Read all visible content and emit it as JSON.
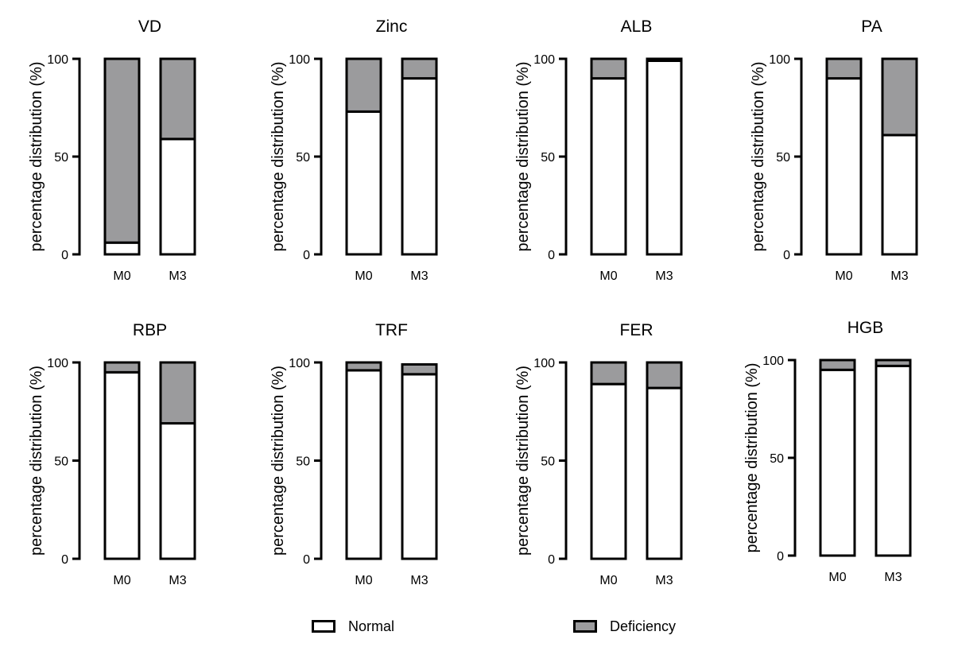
{
  "figure": {
    "colors": {
      "normal": "#ffffff",
      "deficiency": "#9b9b9d",
      "stroke": "#000000"
    },
    "legend": [
      {
        "key": "normal",
        "label": "Normal"
      },
      {
        "key": "deficiency",
        "label": "Deficiency"
      }
    ]
  },
  "chart_data": [
    {
      "type": "bar",
      "stacked": true,
      "title": "VD",
      "categories": [
        "M0",
        "M3"
      ],
      "series": [
        {
          "name": "Normal",
          "values": [
            6,
            59
          ]
        },
        {
          "name": "Deficiency",
          "values": [
            94,
            41
          ]
        }
      ],
      "xlabel": "",
      "ylabel": "percentage distribution (%)",
      "ylim": [
        0,
        100
      ],
      "yticks": [
        0,
        50,
        100
      ],
      "grid": false
    },
    {
      "type": "bar",
      "stacked": true,
      "title": "Zinc",
      "categories": [
        "M0",
        "M3"
      ],
      "series": [
        {
          "name": "Normal",
          "values": [
            73,
            90
          ]
        },
        {
          "name": "Deficiency",
          "values": [
            27,
            10
          ]
        }
      ],
      "xlabel": "",
      "ylabel": "percentage distribution (%)",
      "ylim": [
        0,
        100
      ],
      "yticks": [
        0,
        50,
        100
      ],
      "grid": false
    },
    {
      "type": "bar",
      "stacked": true,
      "title": "ALB",
      "categories": [
        "M0",
        "M3"
      ],
      "series": [
        {
          "name": "Normal",
          "values": [
            90,
            99
          ]
        },
        {
          "name": "Deficiency",
          "values": [
            10,
            1
          ]
        }
      ],
      "xlabel": "",
      "ylabel": "percentage distribution (%)",
      "ylim": [
        0,
        100
      ],
      "yticks": [
        0,
        50,
        100
      ],
      "grid": false
    },
    {
      "type": "bar",
      "stacked": true,
      "title": "PA",
      "categories": [
        "M0",
        "M3"
      ],
      "series": [
        {
          "name": "Normal",
          "values": [
            90,
            61
          ]
        },
        {
          "name": "Deficiency",
          "values": [
            10,
            39
          ]
        }
      ],
      "xlabel": "",
      "ylabel": "percentage distribution (%)",
      "ylim": [
        0,
        100
      ],
      "yticks": [
        0,
        50,
        100
      ],
      "grid": false
    },
    {
      "type": "bar",
      "stacked": true,
      "title": "RBP",
      "categories": [
        "M0",
        "M3"
      ],
      "series": [
        {
          "name": "Normal",
          "values": [
            95,
            69
          ]
        },
        {
          "name": "Deficiency",
          "values": [
            5,
            31
          ]
        }
      ],
      "xlabel": "",
      "ylabel": "percentage distribution (%)",
      "ylim": [
        0,
        100
      ],
      "yticks": [
        0,
        50,
        100
      ],
      "grid": false
    },
    {
      "type": "bar",
      "stacked": true,
      "title": "TRF",
      "categories": [
        "M0",
        "M3"
      ],
      "series": [
        {
          "name": "Normal",
          "values": [
            96,
            94
          ]
        },
        {
          "name": "Deficiency",
          "values": [
            4,
            5
          ]
        }
      ],
      "xlabel": "",
      "ylabel": "percentage distribution (%)",
      "ylim": [
        0,
        100
      ],
      "yticks": [
        0,
        50,
        100
      ],
      "grid": false
    },
    {
      "type": "bar",
      "stacked": true,
      "title": "FER",
      "categories": [
        "M0",
        "M3"
      ],
      "series": [
        {
          "name": "Normal",
          "values": [
            89,
            87
          ]
        },
        {
          "name": "Deficiency",
          "values": [
            11,
            13
          ]
        }
      ],
      "xlabel": "",
      "ylabel": "percentage distribution (%)",
      "ylim": [
        0,
        100
      ],
      "yticks": [
        0,
        50,
        100
      ],
      "grid": false
    },
    {
      "type": "bar",
      "stacked": true,
      "title": "HGB",
      "categories": [
        "M0",
        "M3"
      ],
      "series": [
        {
          "name": "Normal",
          "values": [
            95,
            97
          ]
        },
        {
          "name": "Deficiency",
          "values": [
            5,
            3
          ]
        }
      ],
      "xlabel": "",
      "ylabel": "percentage distribution (%)",
      "ylim": [
        0,
        100
      ],
      "yticks": [
        0,
        50,
        100
      ],
      "grid": false
    }
  ]
}
